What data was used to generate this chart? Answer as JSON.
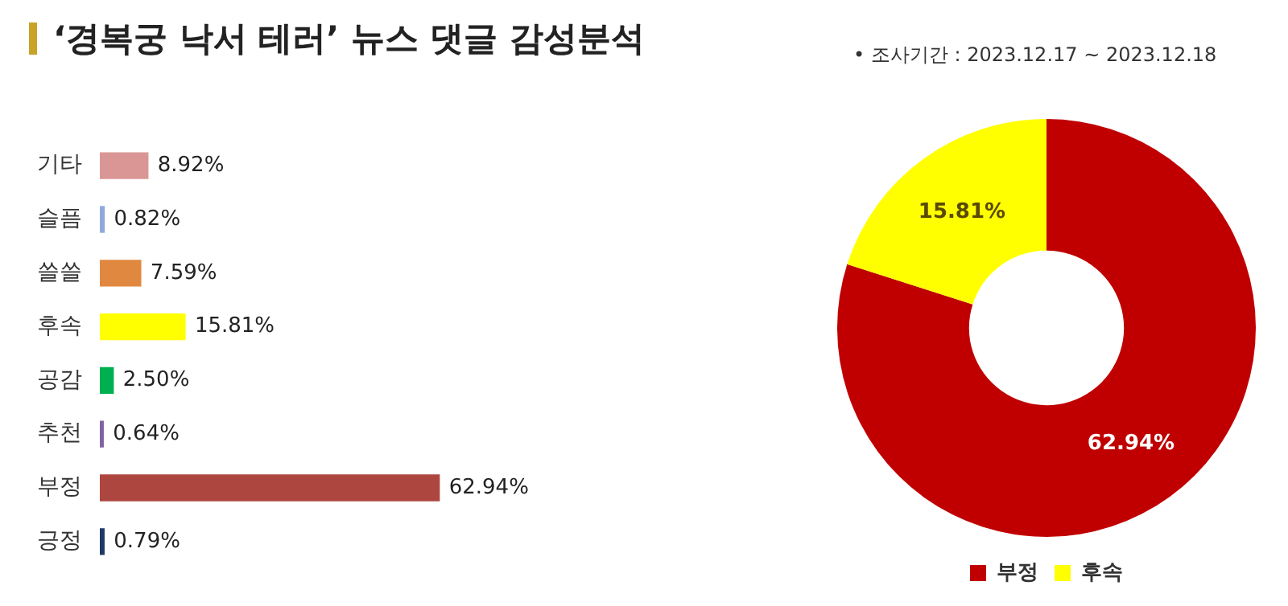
{
  "chart_data": [
    {
      "type": "bar",
      "orientation": "horizontal",
      "title": "‘경복궁 낙서 테러’ 뉴스 댓글 감성분석",
      "categories": [
        "기타",
        "슬픔",
        "쓸쓸",
        "후속",
        "공감",
        "추천",
        "부정",
        "긍정"
      ],
      "values": [
        8.92,
        0.82,
        7.59,
        15.81,
        2.5,
        0.64,
        62.94,
        0.79
      ],
      "colors": [
        "#da9694",
        "#8eaadb",
        "#e0883f",
        "#ffff00",
        "#00b050",
        "#8064a2",
        "#ae4640",
        "#1f3864"
      ],
      "value_labels": [
        "8.92%",
        "0.82%",
        "7.59%",
        "15.81%",
        "2.50%",
        "0.64%",
        "62.94%",
        "0.79%"
      ],
      "tick_labels": "y",
      "legend": false
    },
    {
      "type": "donut",
      "categories": [
        "부정",
        "후속"
      ],
      "values": [
        62.94,
        15.81
      ],
      "colors": [
        "#c00000",
        "#ffff00"
      ],
      "value_labels": [
        "62.94%",
        "15.81%"
      ],
      "legend": "bottom",
      "annotations": [
        "•  조사기간 : 2023.12.17 ~ 2023.12.18"
      ]
    }
  ]
}
